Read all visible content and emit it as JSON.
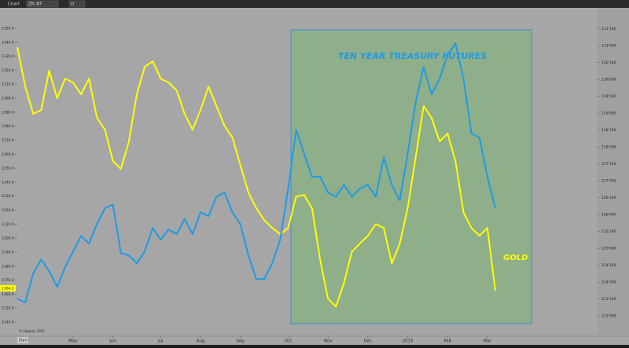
{
  "window_title": "Chart",
  "toolbar": {
    "symbol": "ZN #F",
    "interval": "D"
  },
  "chart_data": {
    "type": "line",
    "annotations": [
      "TEN YEAR TREASURY FUTURES",
      "GOLD"
    ],
    "copyright": "© eSignal, 2015",
    "corner_label": "Dyn",
    "last_price_label": {
      "value": 1164.2,
      "label": "1164.2"
    },
    "categories": [
      null,
      null,
      null,
      null,
      null,
      null,
      null,
      "May",
      null,
      null,
      null,
      null,
      "Jun",
      null,
      null,
      null,
      null,
      null,
      "Jul",
      null,
      null,
      null,
      null,
      "Aug",
      null,
      null,
      null,
      null,
      "Sep",
      null,
      null,
      null,
      null,
      null,
      "Oct",
      null,
      null,
      null,
      null,
      "Nov",
      null,
      null,
      null,
      null,
      "Dec",
      null,
      null,
      null,
      null,
      "2015",
      null,
      null,
      null,
      null,
      "Feb",
      null,
      null,
      null,
      null,
      "Mar",
      null
    ],
    "series": [
      {
        "name": "GOLD",
        "color": "#ffff00",
        "axis": "y",
        "values": [
          1336.5,
          1308.4,
          1288.8,
          1291.6,
          1319.7,
          1300.0,
          1314.0,
          1311.2,
          1302.8,
          1314.0,
          1286.0,
          1277.5,
          1255.1,
          1249.4,
          1269.1,
          1302.8,
          1322.5,
          1326.4,
          1314.0,
          1311.2,
          1305.6,
          1288.8,
          1277.5,
          1291.6,
          1308.4,
          1294.4,
          1280.3,
          1271.9,
          1252.2,
          1232.6,
          1221.3,
          1212.9,
          1207.3,
          1202.8,
          1207.3,
          1229.8,
          1230.9,
          1221.3,
          1184.8,
          1156.7,
          1151.1,
          1168.0,
          1190.4,
          1196.1,
          1201.7,
          1210.1,
          1207.3,
          1182.0,
          1196.1,
          1221.3,
          1257.9,
          1294.4,
          1286.0,
          1269.1,
          1274.7,
          1255.1,
          1218.5,
          1207.3,
          1201.7,
          1207.3,
          1162.4
        ]
      },
      {
        "name": "TEN YEAR TREASURY FUTURES",
        "color": "#1e9be6",
        "axis": "y2",
        "values": [
          123.51,
          123.4,
          124.26,
          124.67,
          124.33,
          123.86,
          124.44,
          124.91,
          125.37,
          125.14,
          125.72,
          126.19,
          126.3,
          124.86,
          124.79,
          124.56,
          124.91,
          125.6,
          125.26,
          125.56,
          125.42,
          125.88,
          125.42,
          126.07,
          125.95,
          126.53,
          126.65,
          126.07,
          125.72,
          124.79,
          124.09,
          124.09,
          124.56,
          125.26,
          126.77,
          128.51,
          127.81,
          127.12,
          127.12,
          126.65,
          126.53,
          126.88,
          126.53,
          126.77,
          126.88,
          126.53,
          127.7,
          126.88,
          126.42,
          127.81,
          129.33,
          130.37,
          129.56,
          130.02,
          130.72,
          131.07,
          130.02,
          128.4,
          128.28,
          127.12,
          126.19
        ]
      }
    ],
    "ylim": [
      1131.6,
      1364.6
    ],
    "yticks": [
      {
        "value": 1140,
        "label": "1140.0"
      },
      {
        "value": 1150,
        "label": "1150.0"
      },
      {
        "value": 1160,
        "label": "1160.0"
      },
      {
        "value": 1170,
        "label": "1170.0"
      },
      {
        "value": 1180,
        "label": "1180.0"
      },
      {
        "value": 1190,
        "label": "1190.0"
      },
      {
        "value": 1200,
        "label": "1200.0"
      },
      {
        "value": 1210,
        "label": "1210.0"
      },
      {
        "value": 1220,
        "label": "1220.0"
      },
      {
        "value": 1230,
        "label": "1230.0"
      },
      {
        "value": 1240,
        "label": "1240.0"
      },
      {
        "value": 1250,
        "label": "1250.0"
      },
      {
        "value": 1260,
        "label": "1260.0"
      },
      {
        "value": 1270,
        "label": "1270.0"
      },
      {
        "value": 1280,
        "label": "1280.0"
      },
      {
        "value": 1290,
        "label": "1290.0"
      },
      {
        "value": 1300,
        "label": "1300.0"
      },
      {
        "value": 1310,
        "label": "1310.0"
      },
      {
        "value": 1320,
        "label": "1320.0"
      },
      {
        "value": 1330,
        "label": "1330.0"
      },
      {
        "value": 1340,
        "label": "1340.0"
      },
      {
        "value": 1350,
        "label": "1350.0"
      }
    ],
    "y2lim": [
      122.47,
      132.12
    ],
    "y2ticks": [
      {
        "value": 123,
        "label": "123'000"
      },
      {
        "value": 123.5,
        "label": "123'160"
      },
      {
        "value": 124,
        "label": "124'000"
      },
      {
        "value": 124.5,
        "label": "124'160"
      },
      {
        "value": 125,
        "label": "125'000"
      },
      {
        "value": 125.5,
        "label": "125'160"
      },
      {
        "value": 126,
        "label": "126'000"
      },
      {
        "value": 126.5,
        "label": "126'160"
      },
      {
        "value": 127,
        "label": "127'000"
      },
      {
        "value": 127.5,
        "label": "127'160"
      },
      {
        "value": 128,
        "label": "128'000"
      },
      {
        "value": 128.5,
        "label": "128'160"
      },
      {
        "value": 129,
        "label": "129'000"
      },
      {
        "value": 129.5,
        "label": "129'160"
      },
      {
        "value": 130,
        "label": "130'000"
      },
      {
        "value": 130.5,
        "label": "130'160"
      },
      {
        "value": 131,
        "label": "131'000"
      },
      {
        "value": 131.5,
        "label": "131'160"
      }
    ],
    "grid": false
  }
}
